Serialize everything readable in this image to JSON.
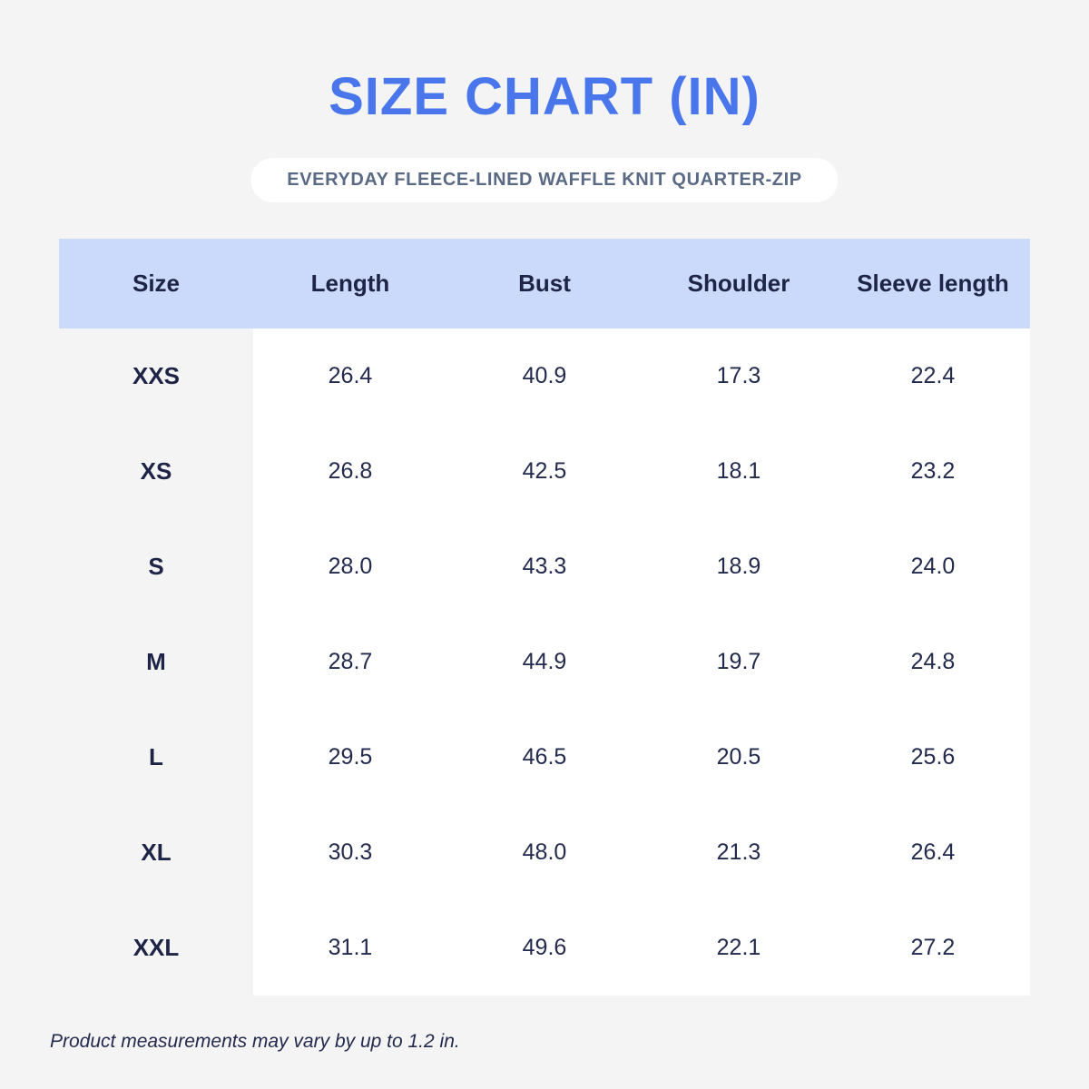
{
  "title": "SIZE CHART (IN)",
  "subtitle": "EVERYDAY FLEECE-LINED WAFFLE KNIT QUARTER-ZIP",
  "footnote": "Product measurements may vary by up to 1.2 in.",
  "colors": {
    "accent_blue": "#4A76EC",
    "header_band_blue": "#CBDAFB",
    "dark_navy_text": "#1E2445",
    "subtitle_gray": "#5A6A84",
    "page_background": "#F4F4F5",
    "table_body_background": "#FFFFFF"
  },
  "chart_data": {
    "type": "table",
    "title": "SIZE CHART (IN)",
    "subtitle": "EVERYDAY FLEECE-LINED WAFFLE KNIT QUARTER-ZIP",
    "units": "in",
    "columns": [
      "Size",
      "Length",
      "Bust",
      "Shoulder",
      "Sleeve length"
    ],
    "rows": [
      {
        "size": "XXS",
        "values": [
          "26.4",
          "40.9",
          "17.3",
          "22.4"
        ]
      },
      {
        "size": "XS",
        "values": [
          "26.8",
          "42.5",
          "18.1",
          "23.2"
        ]
      },
      {
        "size": "S",
        "values": [
          "28.0",
          "43.3",
          "18.9",
          "24.0"
        ]
      },
      {
        "size": "M",
        "values": [
          "28.7",
          "44.9",
          "19.7",
          "24.8"
        ]
      },
      {
        "size": "L",
        "values": [
          "29.5",
          "46.5",
          "20.5",
          "25.6"
        ]
      },
      {
        "size": "XL",
        "values": [
          "30.3",
          "48.0",
          "21.3",
          "26.4"
        ]
      },
      {
        "size": "XXL",
        "values": [
          "31.1",
          "49.6",
          "22.1",
          "27.2"
        ]
      }
    ],
    "note": "Product measurements may vary by up to 1.2 in."
  }
}
